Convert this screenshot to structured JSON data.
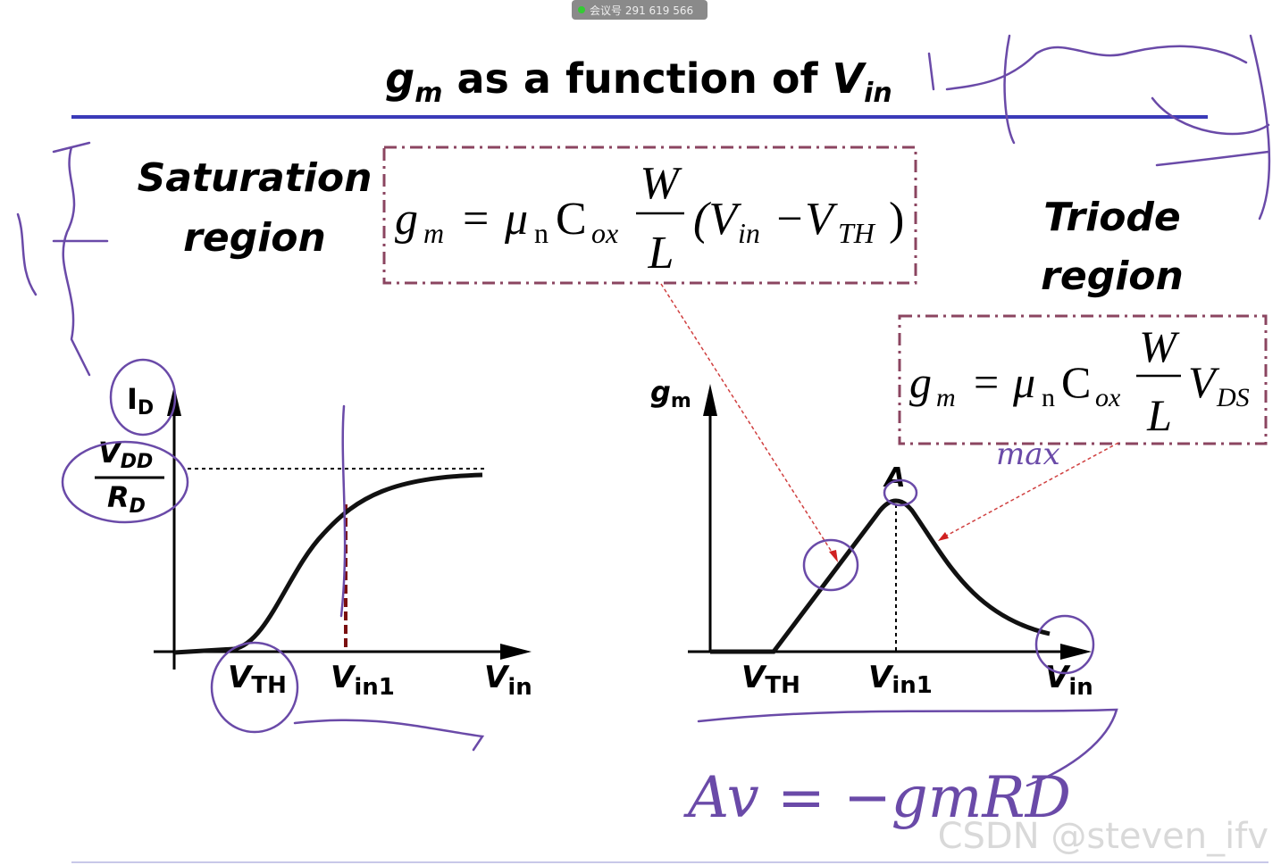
{
  "meeting_bar": "会议号 291 619 566",
  "title": {
    "parts": [
      "g",
      "m",
      " as a function of ",
      "V",
      "in"
    ]
  },
  "saturation_label": [
    "Saturation",
    "region"
  ],
  "triode_label": [
    "Triode",
    "region"
  ],
  "formula_saturation": {
    "parts": [
      "g",
      "m",
      "=",
      "μ",
      "n",
      "C",
      "ox",
      "W",
      "L",
      "(V",
      "in",
      "−V",
      "TH",
      ")"
    ]
  },
  "formula_triode": {
    "parts": [
      "g",
      "m",
      "=",
      "μ",
      "n",
      "C",
      "ox",
      "W",
      "L",
      "V",
      "DS"
    ]
  },
  "left_graph": {
    "y_label": [
      "I",
      "D"
    ],
    "level_top": [
      "V",
      "DD"
    ],
    "level_bottom": [
      "R",
      "D"
    ],
    "x_labels": [
      [
        "V",
        "TH"
      ],
      [
        "V",
        "in1"
      ],
      [
        "V",
        "in"
      ]
    ]
  },
  "right_graph": {
    "y_label": [
      "g",
      "m"
    ],
    "peak_label": "A",
    "x_labels": [
      [
        "V",
        "TH"
      ],
      [
        "V",
        "in1"
      ],
      [
        "V",
        "in"
      ]
    ]
  },
  "handwritten": {
    "max_note": "max",
    "gain_note": "Av = −gmRD"
  },
  "watermark": "CSDN @steven_ifv"
}
